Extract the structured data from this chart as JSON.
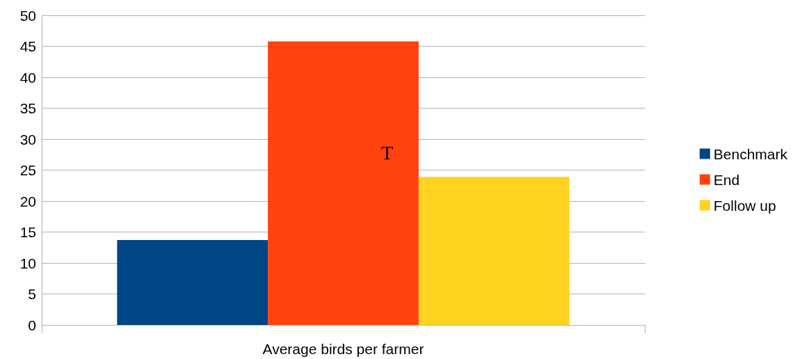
{
  "chart_data": {
    "type": "bar",
    "categories": [
      "Average birds per farmer"
    ],
    "series": [
      {
        "name": "Benchmark",
        "color": "#004586",
        "values": [
          13.7
        ]
      },
      {
        "name": "End",
        "color": "#ff420e",
        "values": [
          45.8
        ]
      },
      {
        "name": "Follow up",
        "color": "#ffd320",
        "values": [
          23.9
        ]
      }
    ],
    "ylim": [
      0,
      50
    ],
    "yticks": [
      0,
      5,
      10,
      15,
      20,
      25,
      30,
      35,
      40,
      45,
      50
    ],
    "grid": "y",
    "legend": "right",
    "annotations": [
      "T"
    ]
  }
}
